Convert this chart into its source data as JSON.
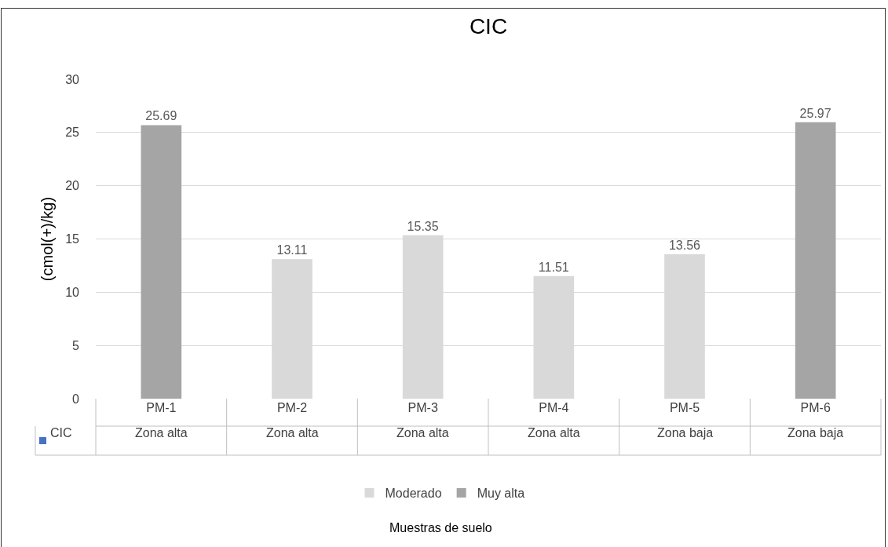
{
  "chart_data": {
    "type": "bar",
    "title": "CIC",
    "ylabel": "(cmol(+)/kg)",
    "categories": [
      "PM-1",
      "PM-2",
      "PM-3",
      "PM-4",
      "PM-5",
      "PM-6"
    ],
    "series": [
      {
        "name": "Moderado",
        "color": "#d9d9d9",
        "values": [
          null,
          13.11,
          15.35,
          11.51,
          13.56,
          null
        ]
      },
      {
        "name": "Muy alta",
        "color": "#a5a5a5",
        "values": [
          25.69,
          null,
          null,
          null,
          null,
          25.97
        ]
      }
    ],
    "ylim": [
      0,
      30
    ],
    "yticks": [
      0,
      5,
      10,
      15,
      20,
      25,
      30
    ],
    "grid": "y",
    "legend": "bottom",
    "data_labels": true,
    "annotations": [
      "CIC",
      "Zona alta",
      "Zona alta",
      "Zona alta",
      "Zona alta",
      "Zona baja",
      "Zona baja",
      "Muestras de suelo"
    ]
  }
}
